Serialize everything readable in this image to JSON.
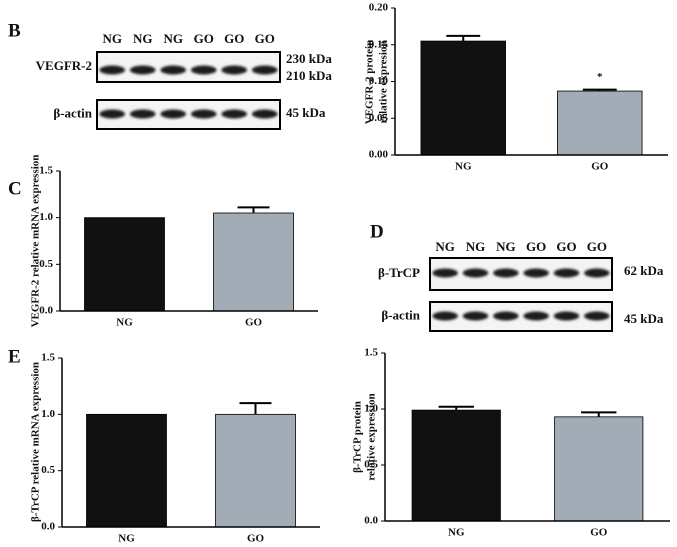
{
  "panel_labels": [
    "B",
    "C",
    "D",
    "E"
  ],
  "blots": [
    {
      "lanes": [
        "NG",
        "NG",
        "NG",
        "GO",
        "GO",
        "GO"
      ],
      "rows": [
        {
          "label": "VEGFR-2",
          "sizes": [
            "230 kDa",
            "210 kDa"
          ]
        },
        {
          "label": "β-actin",
          "sizes": [
            "45 kDa"
          ]
        }
      ]
    },
    {
      "lanes": [
        "NG",
        "NG",
        "NG",
        "GO",
        "GO",
        "GO"
      ],
      "rows": [
        {
          "label": "β-TrCP",
          "sizes": [
            "62 kDa"
          ]
        },
        {
          "label": "β-actin",
          "sizes": [
            "45 kDa"
          ]
        }
      ]
    }
  ],
  "chart_data": [
    {
      "type": "bar",
      "ylabel": [
        "VEGFR-2 protein",
        "relative expresion"
      ],
      "categories": [
        "NG",
        "GO"
      ],
      "values": [
        0.155,
        0.087
      ],
      "errors": [
        0.007,
        0.002
      ],
      "colors": [
        "#111111",
        "#a2acb6"
      ],
      "annotations": [
        {
          "text": "*",
          "x": "GO"
        }
      ],
      "ylim": [
        0,
        0.2
      ],
      "yticks": [
        {
          "value": 0,
          "label": "0.00"
        },
        {
          "value": 0.05,
          "label": "0.05"
        },
        {
          "value": 0.1,
          "label": "0.10"
        },
        {
          "value": 0.15,
          "label": "0.15"
        },
        {
          "value": 0.2,
          "label": "0.20"
        }
      ]
    },
    {
      "type": "bar",
      "ylabel": [
        "VEGFR-2 relative mRNA  expression"
      ],
      "categories": [
        "NG",
        "GO"
      ],
      "values": [
        1.0,
        1.05
      ],
      "errors": [
        0,
        0.06
      ],
      "colors": [
        "#111111",
        "#a2acb6"
      ],
      "ylim": [
        0,
        1.5
      ],
      "yticks": [
        {
          "value": 0,
          "label": "0.0"
        },
        {
          "value": 0.5,
          "label": "0.5"
        },
        {
          "value": 1,
          "label": "1.0"
        },
        {
          "value": 1.5,
          "label": "1.5"
        }
      ]
    },
    {
      "type": "bar",
      "ylabel": [
        "β-TrCP protein",
        "relative expression"
      ],
      "categories": [
        "NG",
        "GO"
      ],
      "values": [
        0.99,
        0.93
      ],
      "errors": [
        0.03,
        0.04
      ],
      "colors": [
        "#111111",
        "#a2acb6"
      ],
      "ylim": [
        0,
        1.5
      ],
      "yticks": [
        {
          "value": 0,
          "label": "0.0"
        },
        {
          "value": 0.5,
          "label": "0.5"
        },
        {
          "value": 1,
          "label": "1.0"
        },
        {
          "value": 1.5,
          "label": "1.5"
        }
      ]
    },
    {
      "type": "bar",
      "ylabel": [
        "β-TrCP relative mRNA  expression"
      ],
      "categories": [
        "NG",
        "GO"
      ],
      "values": [
        1.0,
        1.0
      ],
      "errors": [
        0,
        0.1
      ],
      "colors": [
        "#111111",
        "#a2acb6"
      ],
      "ylim": [
        0,
        1.5
      ],
      "yticks": [
        {
          "value": 0,
          "label": "0.0"
        },
        {
          "value": 0.5,
          "label": "0.5"
        },
        {
          "value": 1,
          "label": "1.0"
        },
        {
          "value": 1.5,
          "label": "1.5"
        }
      ]
    }
  ]
}
